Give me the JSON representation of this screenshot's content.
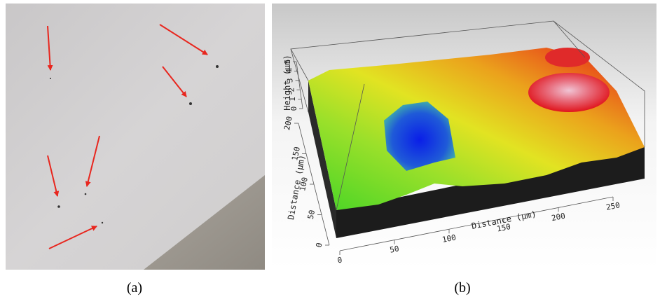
{
  "captions": [
    "(a)",
    "(b)"
  ],
  "plot": {
    "x_axis": {
      "label": "Distance (µm)",
      "ticks": [
        0,
        50,
        100,
        150,
        200,
        250
      ]
    },
    "y_axis": {
      "label": "Distance (µm)",
      "ticks": [
        0,
        50,
        100,
        150,
        200
      ]
    },
    "z_axis": {
      "label": "Height (µm)",
      "ticks": [
        0,
        1,
        2,
        3,
        4,
        5
      ]
    }
  }
}
